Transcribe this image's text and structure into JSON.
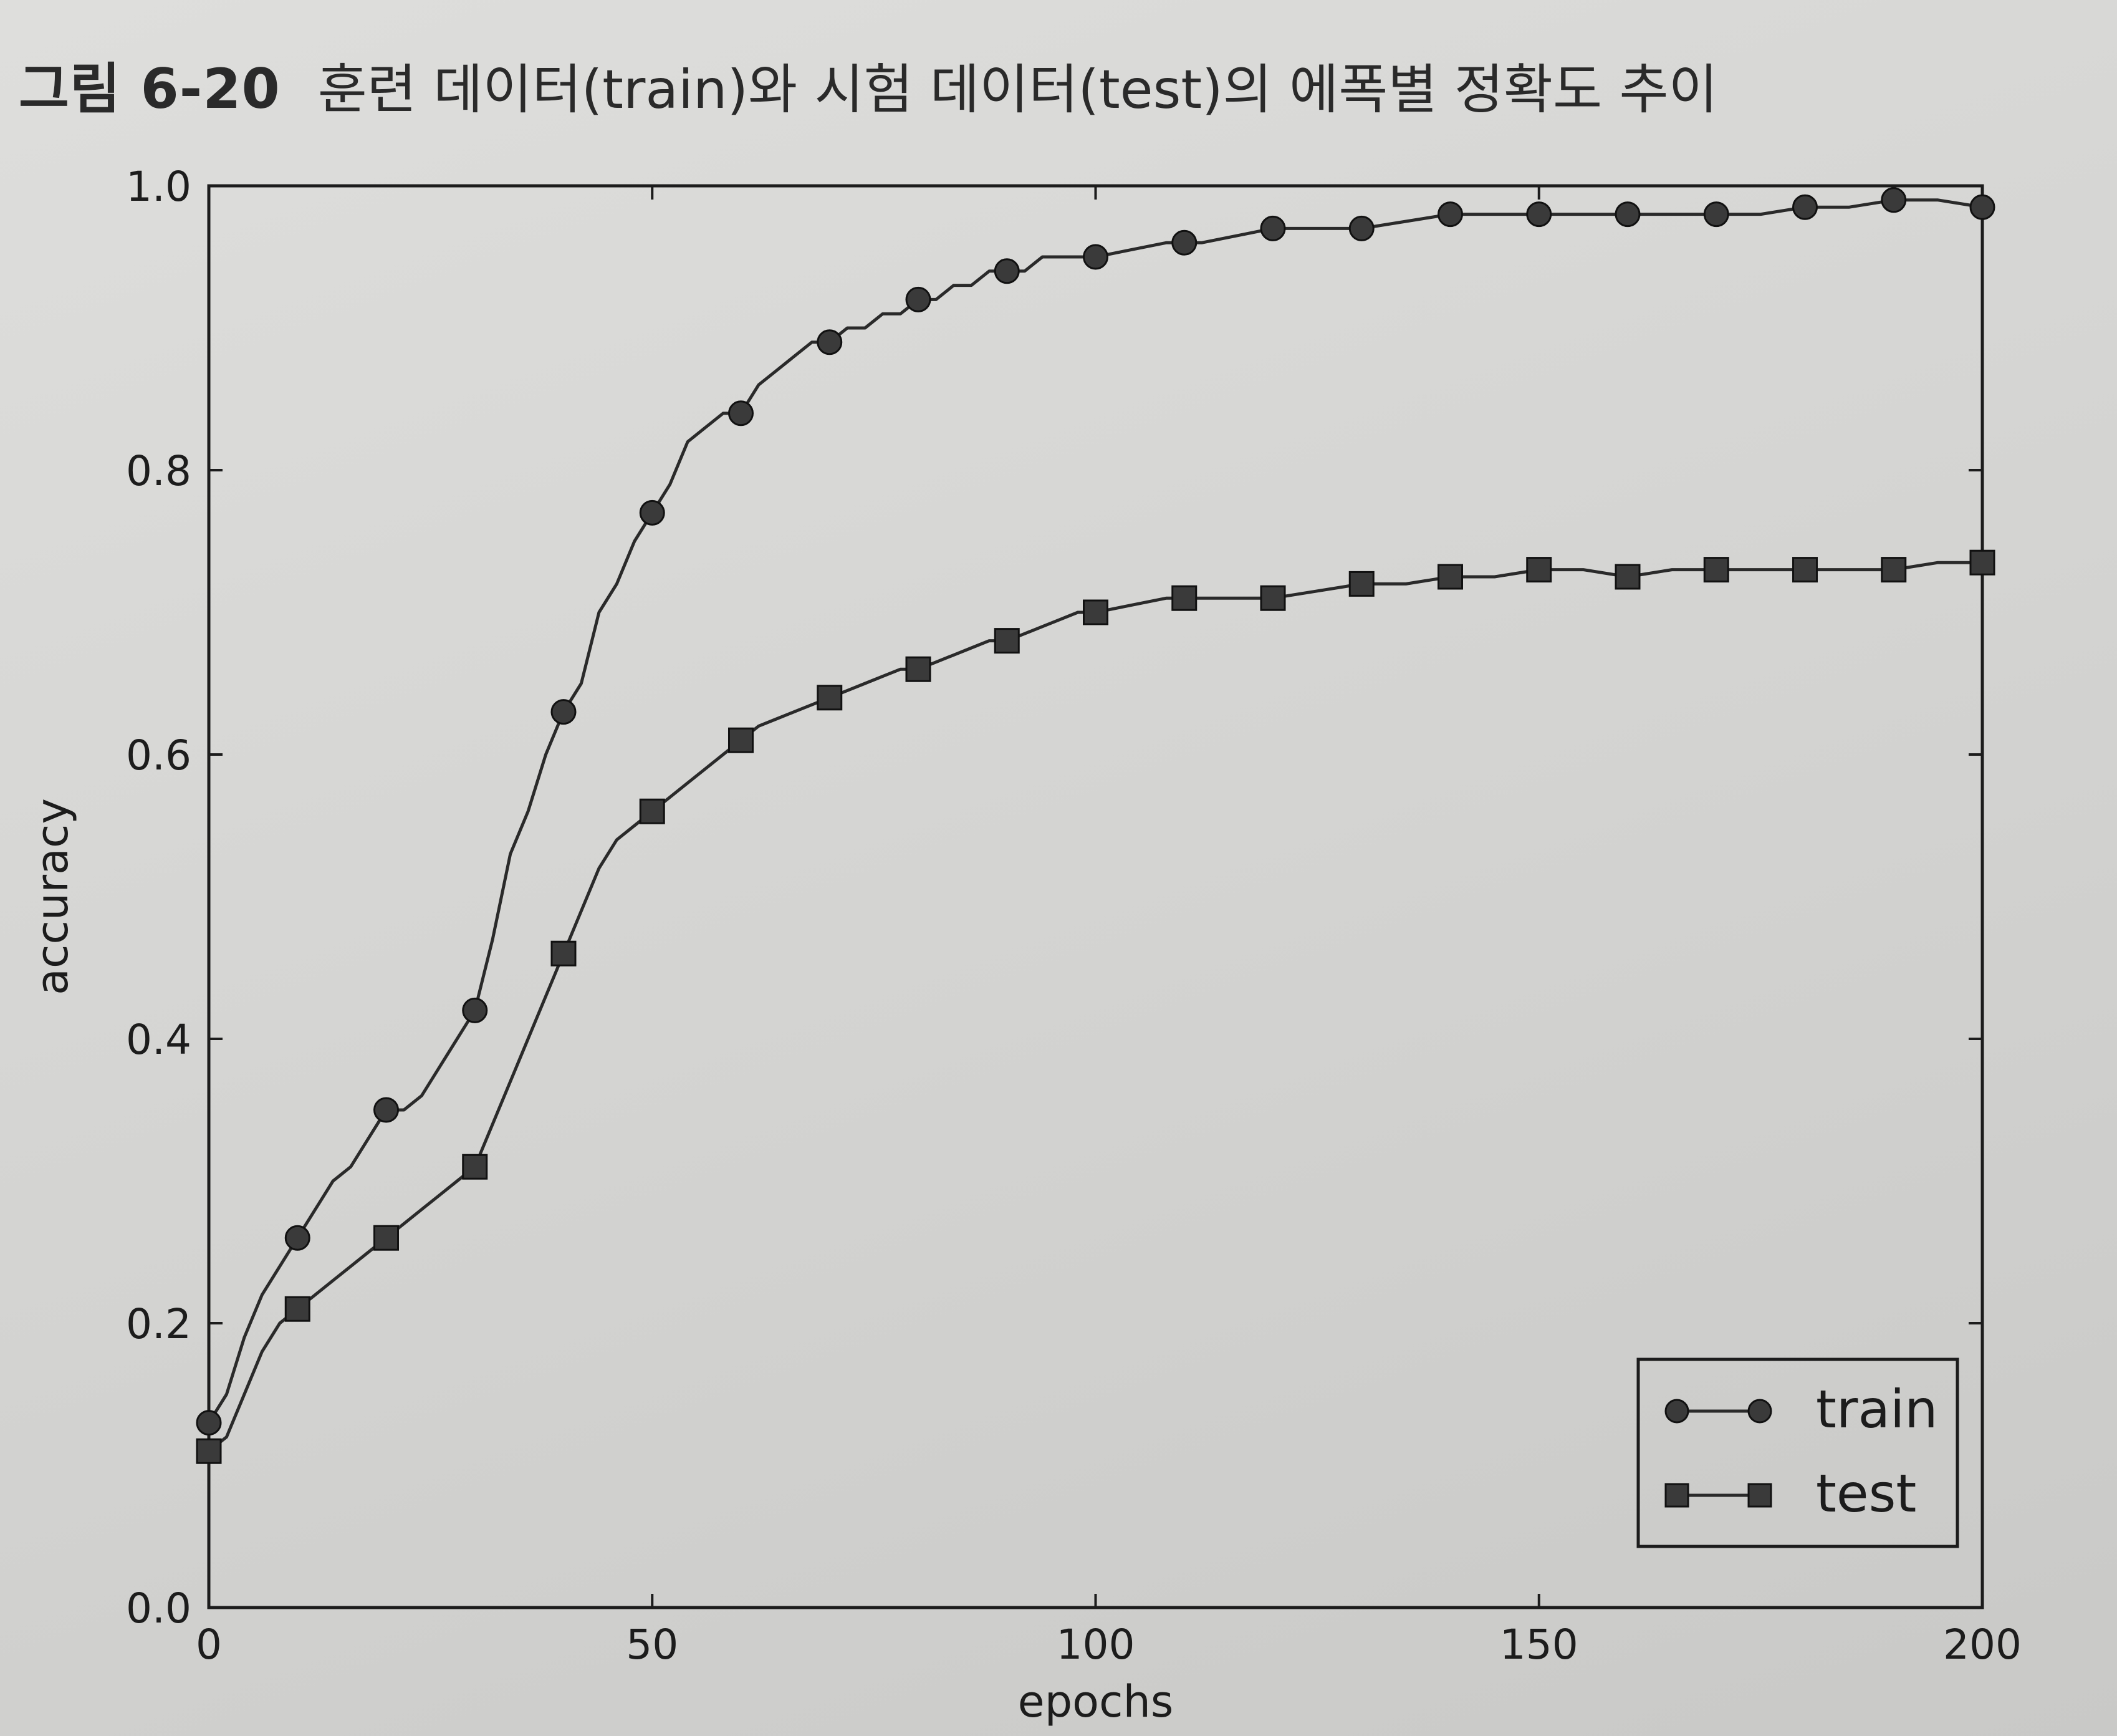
{
  "figure": {
    "number": "그림 6-20",
    "title": "훈련 데이터(train)와 시험 데이터(test)의 에폭별 정확도 추이"
  },
  "chart_data": {
    "type": "line",
    "title": "",
    "xlabel": "epochs",
    "ylabel": "accuracy",
    "xlim": [
      0,
      200
    ],
    "ylim": [
      0.0,
      1.0
    ],
    "xticks": [
      0,
      50,
      100,
      150,
      200
    ],
    "yticks": [
      0.0,
      0.2,
      0.4,
      0.6,
      0.8,
      1.0
    ],
    "xtick_labels": [
      "0",
      "50",
      "100",
      "150",
      "200"
    ],
    "ytick_labels": [
      "0.0",
      "0.2",
      "0.4",
      "0.6",
      "0.8",
      "1.0"
    ],
    "grid": false,
    "legend_position": "lower-right",
    "series": [
      {
        "name": "train",
        "marker": "circle",
        "color": "#2a2a2a",
        "x": [
          0,
          10,
          20,
          30,
          40,
          50,
          60,
          70,
          80,
          90,
          100,
          110,
          120,
          130,
          140,
          150,
          160,
          170,
          180,
          190,
          200
        ],
        "y": [
          0.13,
          0.26,
          0.35,
          0.42,
          0.63,
          0.77,
          0.84,
          0.89,
          0.92,
          0.94,
          0.95,
          0.96,
          0.97,
          0.97,
          0.98,
          0.98,
          0.98,
          0.98,
          0.985,
          0.99,
          0.985
        ],
        "curve_x": [
          0,
          2,
          4,
          6,
          8,
          10,
          12,
          14,
          16,
          18,
          20,
          22,
          24,
          26,
          28,
          30,
          32,
          34,
          36,
          38,
          40,
          42,
          44,
          46,
          48,
          50,
          52,
          54,
          56,
          58,
          60,
          62,
          64,
          66,
          68,
          70,
          72,
          74,
          76,
          78,
          80,
          82,
          84,
          86,
          88,
          90,
          92,
          94,
          96,
          98,
          100,
          104,
          108,
          112,
          116,
          120,
          125,
          130,
          135,
          140,
          145,
          150,
          155,
          160,
          165,
          170,
          175,
          180,
          185,
          190,
          195,
          200
        ],
        "curve_y": [
          0.13,
          0.15,
          0.19,
          0.22,
          0.24,
          0.26,
          0.28,
          0.3,
          0.31,
          0.33,
          0.35,
          0.35,
          0.36,
          0.38,
          0.4,
          0.42,
          0.47,
          0.53,
          0.56,
          0.6,
          0.63,
          0.65,
          0.7,
          0.72,
          0.75,
          0.77,
          0.79,
          0.82,
          0.83,
          0.84,
          0.84,
          0.86,
          0.87,
          0.88,
          0.89,
          0.89,
          0.9,
          0.9,
          0.91,
          0.91,
          0.92,
          0.92,
          0.93,
          0.93,
          0.94,
          0.94,
          0.94,
          0.95,
          0.95,
          0.95,
          0.95,
          0.955,
          0.96,
          0.96,
          0.965,
          0.97,
          0.97,
          0.97,
          0.975,
          0.98,
          0.98,
          0.98,
          0.98,
          0.98,
          0.98,
          0.98,
          0.98,
          0.985,
          0.985,
          0.99,
          0.99,
          0.985
        ]
      },
      {
        "name": "test",
        "marker": "square",
        "color": "#2a2a2a",
        "x": [
          0,
          10,
          20,
          30,
          40,
          50,
          60,
          70,
          80,
          90,
          100,
          110,
          120,
          130,
          140,
          150,
          160,
          170,
          180,
          190,
          200
        ],
        "y": [
          0.11,
          0.21,
          0.26,
          0.31,
          0.46,
          0.56,
          0.61,
          0.64,
          0.66,
          0.68,
          0.7,
          0.71,
          0.71,
          0.72,
          0.725,
          0.73,
          0.725,
          0.73,
          0.73,
          0.73,
          0.735
        ],
        "curve_x": [
          0,
          2,
          4,
          6,
          8,
          10,
          12,
          14,
          16,
          18,
          20,
          22,
          24,
          26,
          28,
          30,
          32,
          34,
          36,
          38,
          40,
          42,
          44,
          46,
          48,
          50,
          52,
          54,
          56,
          58,
          60,
          62,
          64,
          66,
          68,
          70,
          72,
          74,
          76,
          78,
          80,
          82,
          84,
          86,
          88,
          90,
          92,
          94,
          96,
          98,
          100,
          104,
          108,
          112,
          116,
          120,
          125,
          130,
          135,
          140,
          145,
          150,
          155,
          160,
          165,
          170,
          175,
          180,
          185,
          190,
          195,
          200
        ],
        "curve_y": [
          0.11,
          0.12,
          0.15,
          0.18,
          0.2,
          0.21,
          0.22,
          0.23,
          0.24,
          0.25,
          0.26,
          0.27,
          0.28,
          0.29,
          0.3,
          0.31,
          0.34,
          0.37,
          0.4,
          0.43,
          0.46,
          0.49,
          0.52,
          0.54,
          0.55,
          0.56,
          0.57,
          0.58,
          0.59,
          0.6,
          0.61,
          0.62,
          0.625,
          0.63,
          0.635,
          0.64,
          0.645,
          0.65,
          0.655,
          0.66,
          0.66,
          0.665,
          0.67,
          0.675,
          0.68,
          0.68,
          0.685,
          0.69,
          0.695,
          0.7,
          0.7,
          0.705,
          0.71,
          0.71,
          0.71,
          0.71,
          0.715,
          0.72,
          0.72,
          0.725,
          0.725,
          0.73,
          0.73,
          0.725,
          0.73,
          0.73,
          0.73,
          0.73,
          0.73,
          0.73,
          0.735,
          0.735
        ]
      }
    ]
  }
}
